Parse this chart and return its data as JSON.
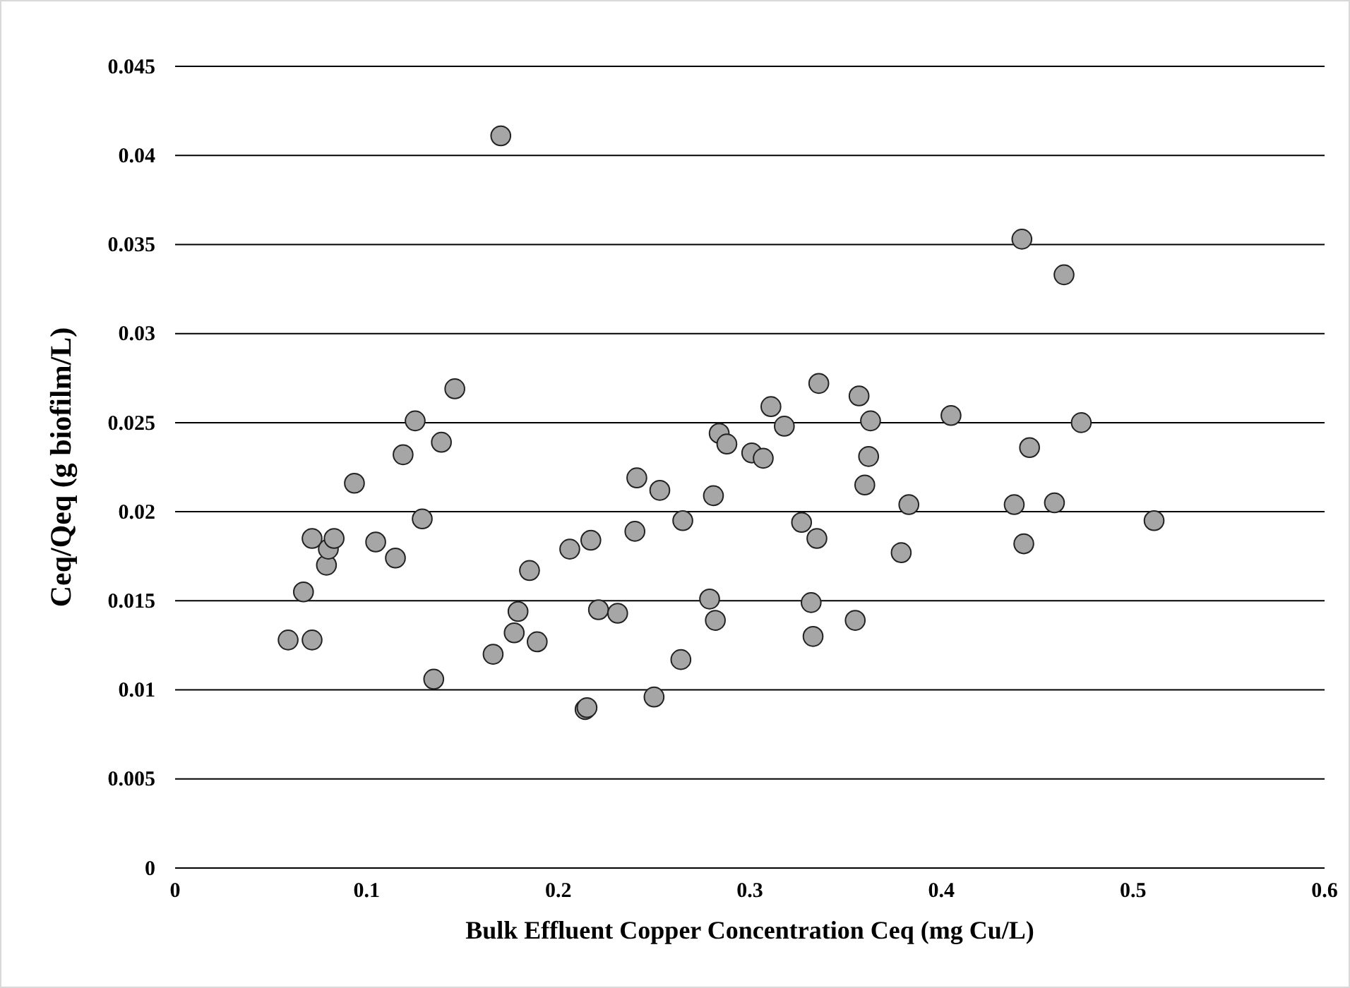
{
  "chart_data": {
    "type": "scatter",
    "xlabel": "Bulk Effluent Copper Concentration Ceq (mg Cu/L)",
    "ylabel": "Ceq/Qeq (g biofilm/L)",
    "xlim": [
      0,
      0.6
    ],
    "xticks": [
      0,
      0.1,
      0.2,
      0.3,
      0.4,
      0.5,
      0.6
    ],
    "ylim": [
      0,
      0.045
    ],
    "yticks": [
      0,
      0.005,
      0.01,
      0.015,
      0.02,
      0.025,
      0.03,
      0.035,
      0.04,
      0.045
    ],
    "grid": "y",
    "marker": "circle",
    "series": [
      {
        "color": "#a6a6a6",
        "x": [
          0.059,
          0.067,
          0.0715,
          0.0715,
          0.079,
          0.08,
          0.083,
          0.0936,
          0.1047,
          0.115,
          0.119,
          0.1253,
          0.129,
          0.135,
          0.139,
          0.146,
          0.166,
          0.17,
          0.177,
          0.179,
          0.185,
          0.189,
          0.206,
          0.214,
          0.215,
          0.217,
          0.221,
          0.231,
          0.241,
          0.24,
          0.25,
          0.253,
          0.264,
          0.265,
          0.279,
          0.281,
          0.282,
          0.284,
          0.288,
          0.301,
          0.307,
          0.311,
          0.318,
          0.327,
          0.332,
          0.333,
          0.335,
          0.336,
          0.355,
          0.357,
          0.36,
          0.362,
          0.363,
          0.379,
          0.383,
          0.405,
          0.438,
          0.442,
          0.443,
          0.446,
          0.459,
          0.464,
          0.473,
          0.511
        ],
        "values": [
          0.0128,
          0.0155,
          0.0185,
          0.0128,
          0.017,
          0.0179,
          0.0185,
          0.0216,
          0.0183,
          0.0174,
          0.0232,
          0.0251,
          0.0196,
          0.0106,
          0.0239,
          0.0269,
          0.012,
          0.0411,
          0.0132,
          0.0144,
          0.0167,
          0.0127,
          0.0179,
          0.0089,
          0.009,
          0.0184,
          0.0145,
          0.0143,
          0.0219,
          0.0189,
          0.0096,
          0.0212,
          0.0117,
          0.0195,
          0.0151,
          0.0209,
          0.0139,
          0.0244,
          0.0238,
          0.0233,
          0.023,
          0.0259,
          0.0248,
          0.0194,
          0.0149,
          0.013,
          0.0185,
          0.0272,
          0.0139,
          0.0265,
          0.0215,
          0.0231,
          0.0251,
          0.0177,
          0.0204,
          0.0254,
          0.0204,
          0.0353,
          0.0182,
          0.0236,
          0.0205,
          0.0333,
          0.025,
          0.0195
        ]
      }
    ]
  }
}
